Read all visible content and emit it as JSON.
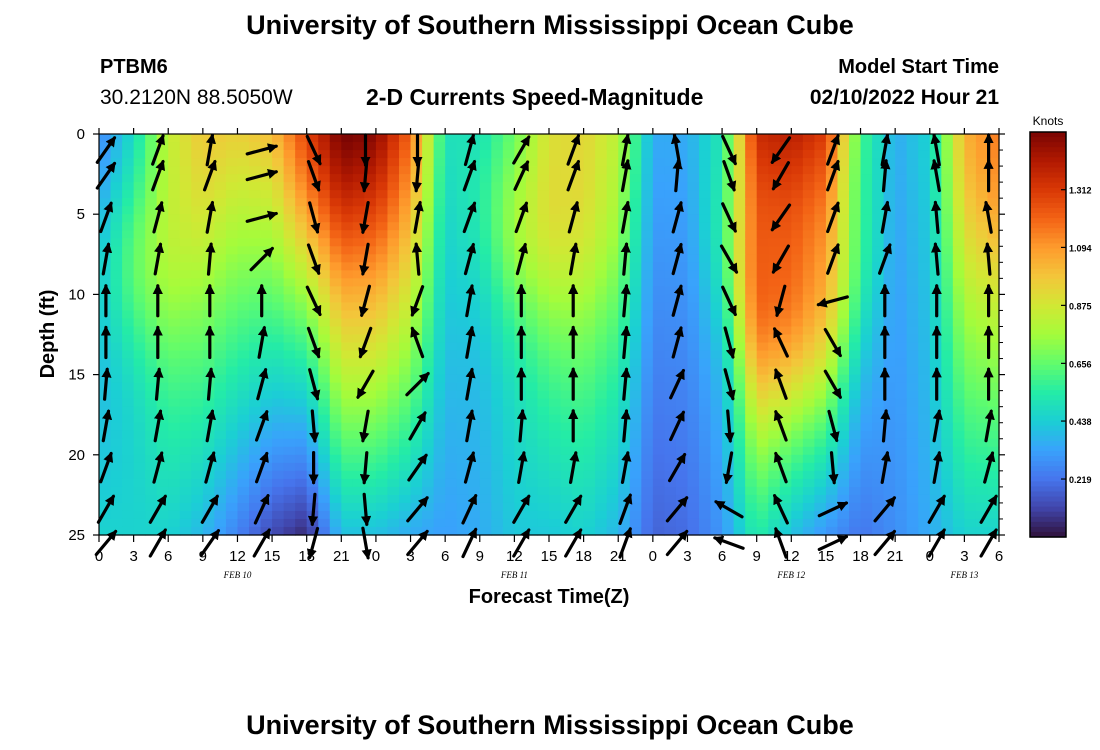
{
  "header": {
    "title": "University of Southern Mississippi Ocean Cube",
    "station": "PTBM6",
    "coords": "30.2120N  88.5050W",
    "subtitle": "2-D Currents Speed-Magnitude",
    "model_label": "Model Start Time",
    "model_time": "02/10/2022 Hour 21"
  },
  "footer": {
    "title": "University of Southern Mississippi Ocean Cube"
  },
  "colors": {
    "scale": [
      "#30123b",
      "#4145ab",
      "#4675ed",
      "#39a2fc",
      "#1bcfd4",
      "#24eca6",
      "#61fc6c",
      "#a4fc3b",
      "#d1e834",
      "#f3c63a",
      "#fe9b2d",
      "#f36315",
      "#d93806",
      "#b11901",
      "#7a0402"
    ]
  },
  "chart_data": {
    "type": "heatmap",
    "xlabel": "Forecast Time(Z)",
    "ylabel": "Depth (ft)",
    "ylim": [
      0,
      25
    ],
    "xlim": [
      0,
      78
    ],
    "x_tick_labels": [
      "0",
      "3",
      "6",
      "9",
      "12",
      "15",
      "18",
      "21",
      "0",
      "3",
      "6",
      "9",
      "12",
      "15",
      "18",
      "21",
      "0",
      "3",
      "6",
      "9",
      "12",
      "15",
      "18",
      "21",
      "0",
      "3",
      "6"
    ],
    "y_ticks": [
      0,
      5,
      10,
      15,
      20,
      25
    ],
    "y_tick_labels": [
      "0",
      "5",
      "10",
      "15",
      "20",
      "25"
    ],
    "date_labels": [
      {
        "text": "FEB 10",
        "hour": 12
      },
      {
        "text": "FEB 11",
        "hour": 36
      },
      {
        "text": "FEB 12",
        "hour": 60
      },
      {
        "text": "FEB 13",
        "hour": 75
      }
    ],
    "colorbar": {
      "title": "Knots",
      "min": 0,
      "max": 1.53,
      "ticks": [
        0.219,
        0.438,
        0.656,
        0.875,
        1.094,
        1.312
      ],
      "tick_labels": [
        "0.219",
        "0.438",
        "0.656",
        "0.875",
        "1.094",
        "1.312"
      ]
    },
    "speed_profile": {
      "hours": [
        0,
        3,
        6,
        9,
        12,
        15,
        18,
        21,
        24,
        27,
        30,
        33,
        36,
        39,
        42,
        45,
        48,
        51,
        54,
        57,
        60,
        63,
        66,
        69,
        72,
        75,
        78
      ],
      "surface": [
        0.25,
        0.45,
        0.82,
        0.95,
        0.95,
        1.0,
        1.2,
        1.45,
        1.45,
        1.2,
        0.5,
        0.45,
        0.6,
        0.85,
        0.9,
        0.8,
        0.35,
        0.35,
        0.5,
        1.35,
        1.4,
        1.3,
        0.6,
        0.35,
        0.45,
        1.0,
        1.1
      ],
      "bottom": [
        0.45,
        0.45,
        0.45,
        0.38,
        0.25,
        0.12,
        0.05,
        0.4,
        0.4,
        0.35,
        0.32,
        0.35,
        0.42,
        0.42,
        0.45,
        0.38,
        0.18,
        0.2,
        0.3,
        0.55,
        0.4,
        0.3,
        0.22,
        0.28,
        0.35,
        0.45,
        0.45
      ],
      "core_depth": [
        8,
        8,
        8,
        5,
        3,
        3,
        3,
        2,
        1,
        5,
        4,
        5,
        6,
        6,
        6,
        6,
        5,
        6,
        7,
        12,
        12,
        12,
        9,
        6,
        4,
        4,
        4
      ],
      "core_extra": [
        0.1,
        0.2,
        0.1,
        0.05,
        0,
        0,
        0.1,
        0.1,
        0.05,
        0,
        0,
        0.1,
        0.2,
        0.15,
        0.1,
        0.05,
        0,
        0,
        0.1,
        0.2,
        0.2,
        0.15,
        0.1,
        0,
        0,
        0.05,
        0.1
      ]
    },
    "vector_field": {
      "hours": [
        0,
        4.5,
        9,
        13.5,
        18,
        22.5,
        27,
        31.5,
        36,
        40.5,
        45,
        49.5,
        54,
        58.5,
        63,
        67.5,
        72,
        76.5
      ],
      "depths": [
        1,
        2.6,
        5.2,
        7.8,
        10.4,
        13,
        15.6,
        18.2,
        20.8,
        23.4,
        25.5
      ],
      "direction_deg": [
        [
          35,
          20,
          10,
          75,
          155,
          180,
          180,
          15,
          30,
          20,
          10,
          -10,
          155,
          215,
          20,
          10,
          -10,
          0
        ],
        [
          35,
          20,
          20,
          75,
          160,
          185,
          185,
          20,
          25,
          20,
          10,
          5,
          160,
          210,
          20,
          5,
          -10,
          0
        ],
        [
          20,
          15,
          10,
          75,
          165,
          190,
          10,
          20,
          20,
          15,
          10,
          15,
          155,
          215,
          20,
          10,
          -5,
          -10
        ],
        [
          10,
          10,
          5,
          45,
          160,
          190,
          -5,
          15,
          15,
          10,
          5,
          15,
          150,
          210,
          20,
          20,
          -5,
          -5
        ],
        [
          0,
          0,
          0,
          0,
          155,
          195,
          200,
          10,
          0,
          0,
          5,
          15,
          155,
          195,
          -105,
          0,
          0,
          0
        ],
        [
          0,
          0,
          0,
          10,
          160,
          200,
          -20,
          10,
          0,
          0,
          5,
          15,
          165,
          -25,
          150,
          0,
          0,
          0
        ],
        [
          5,
          5,
          5,
          15,
          165,
          210,
          45,
          10,
          0,
          0,
          5,
          25,
          165,
          -20,
          150,
          0,
          0,
          0
        ],
        [
          10,
          10,
          10,
          20,
          175,
          190,
          30,
          10,
          5,
          0,
          5,
          25,
          175,
          -20,
          165,
          5,
          10,
          10
        ],
        [
          20,
          15,
          15,
          20,
          180,
          185,
          35,
          15,
          10,
          10,
          10,
          30,
          190,
          -20,
          175,
          10,
          10,
          15
        ],
        [
          30,
          30,
          30,
          25,
          185,
          175,
          40,
          25,
          30,
          30,
          20,
          40,
          -60,
          -25,
          65,
          40,
          30,
          30
        ],
        [
          40,
          30,
          35,
          30,
          195,
          170,
          40,
          25,
          30,
          30,
          20,
          40,
          -70,
          -20,
          65,
          40,
          30,
          30
        ]
      ]
    }
  }
}
